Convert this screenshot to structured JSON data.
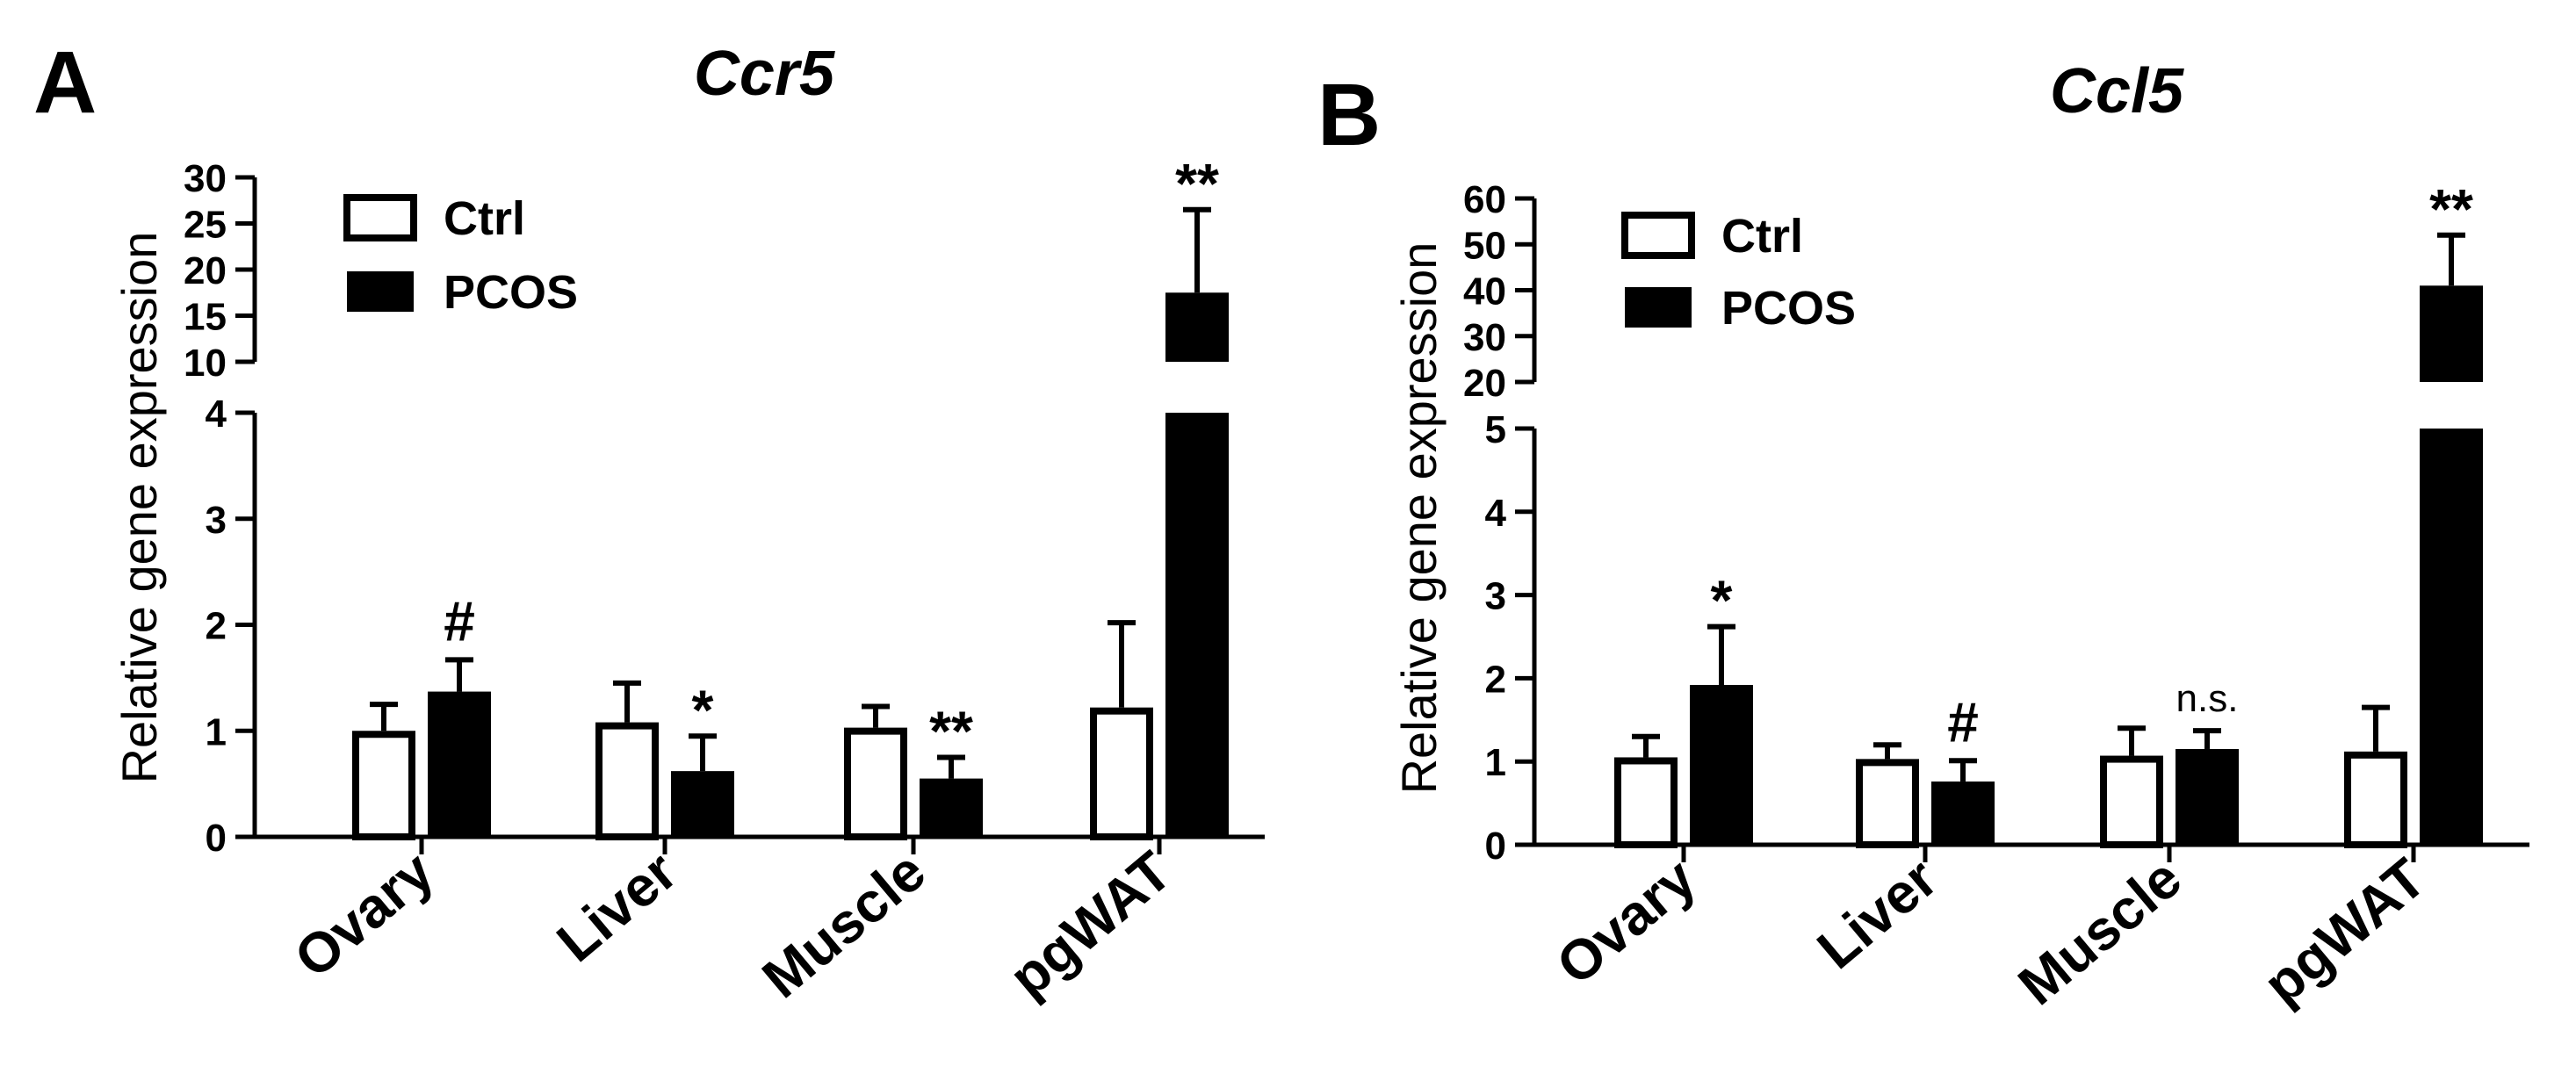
{
  "chart_data": [
    {
      "panel": "A",
      "type": "bar",
      "title": "Ccr5",
      "ylabel": "Relative gene expression",
      "xlabel": "",
      "categories": [
        "Ovary",
        "Liver",
        "Muscle",
        "pgWAT"
      ],
      "series": [
        {
          "name": "Ctrl",
          "values": [
            1.0,
            1.08,
            1.03,
            1.22
          ],
          "errors": [
            0.25,
            0.37,
            0.2,
            0.8
          ]
        },
        {
          "name": "PCOS",
          "values": [
            1.37,
            0.62,
            0.55,
            17.5
          ],
          "errors": [
            0.3,
            0.33,
            0.2,
            9.0
          ]
        }
      ],
      "annotations": [
        {
          "category": "Ovary",
          "series": "PCOS",
          "text": "#"
        },
        {
          "category": "Liver",
          "series": "PCOS",
          "text": "*"
        },
        {
          "category": "Muscle",
          "series": "PCOS",
          "text": "**"
        },
        {
          "category": "pgWAT",
          "series": "PCOS",
          "text": "**"
        }
      ],
      "y_axis_segments": [
        {
          "range": [
            0,
            4
          ],
          "ticks": [
            "0",
            "1",
            "2",
            "3",
            "4"
          ]
        },
        {
          "range": [
            10,
            30
          ],
          "ticks": [
            "10",
            "15",
            "20",
            "25",
            "30"
          ]
        }
      ],
      "legend_position": "top-left",
      "grid": false
    },
    {
      "panel": "B",
      "type": "bar",
      "title": "Ccl5",
      "ylabel": "Relative gene expression",
      "xlabel": "",
      "categories": [
        "Ovary",
        "Liver",
        "Muscle",
        "pgWAT"
      ],
      "series": [
        {
          "name": "Ctrl",
          "values": [
            1.05,
            1.03,
            1.07,
            1.12
          ],
          "errors": [
            0.25,
            0.17,
            0.33,
            0.53
          ]
        },
        {
          "name": "PCOS",
          "values": [
            1.92,
            0.76,
            1.15,
            41.0
          ],
          "errors": [
            0.7,
            0.25,
            0.22,
            11.0
          ]
        }
      ],
      "annotations": [
        {
          "category": "Ovary",
          "series": "PCOS",
          "text": "*"
        },
        {
          "category": "Liver",
          "series": "PCOS",
          "text": "#"
        },
        {
          "category": "Muscle",
          "series": "PCOS",
          "text": "n.s."
        },
        {
          "category": "pgWAT",
          "series": "PCOS",
          "text": "**"
        }
      ],
      "y_axis_segments": [
        {
          "range": [
            0,
            5
          ],
          "ticks": [
            "0",
            "1",
            "2",
            "3",
            "4",
            "5"
          ]
        },
        {
          "range": [
            20,
            60
          ],
          "ticks": [
            "20",
            "30",
            "40",
            "50",
            "60"
          ]
        }
      ],
      "legend_position": "top-left",
      "grid": false
    }
  ],
  "colors": {
    "Ctrl": "#ffffff",
    "PCOS": "#000000",
    "stroke": "#000000"
  }
}
